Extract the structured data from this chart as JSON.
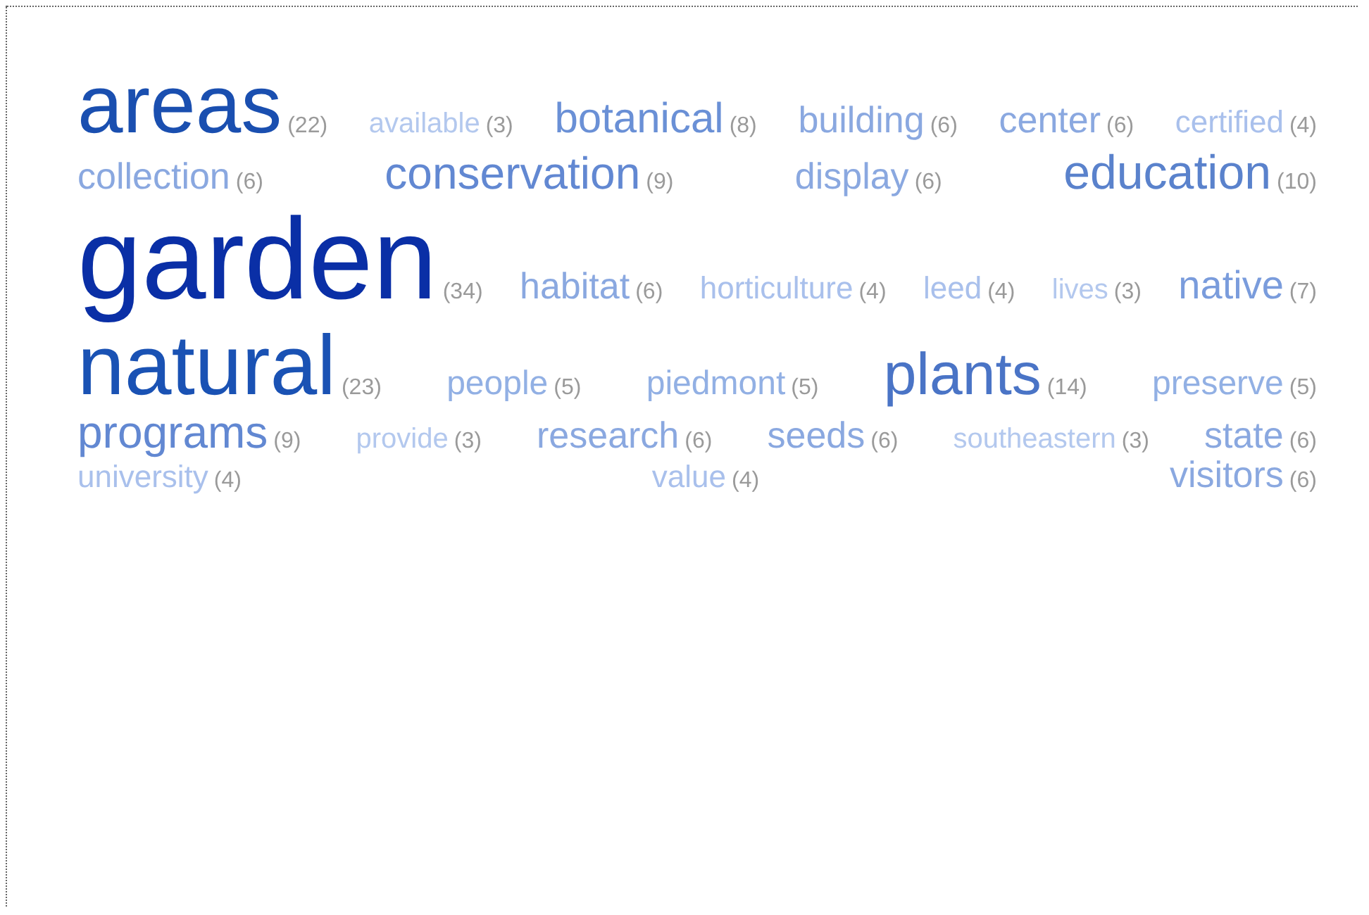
{
  "chart_data": {
    "type": "other",
    "categories": [
      "areas",
      "available",
      "botanical",
      "building",
      "center",
      "certified",
      "collection",
      "conservation",
      "display",
      "education",
      "garden",
      "habitat",
      "horticulture",
      "leed",
      "lives",
      "native",
      "natural",
      "people",
      "piedmont",
      "plants",
      "preserve",
      "programs",
      "provide",
      "research",
      "seeds",
      "southeastern",
      "state",
      "university",
      "value",
      "visitors"
    ],
    "values": [
      22,
      3,
      8,
      6,
      6,
      4,
      6,
      9,
      6,
      10,
      34,
      6,
      4,
      4,
      3,
      7,
      23,
      5,
      5,
      14,
      5,
      9,
      3,
      6,
      6,
      3,
      6,
      4,
      4,
      6
    ],
    "value_labels": [
      "(22)",
      "(3)",
      "(8)",
      "(6)",
      "(6)",
      "(4)",
      "(6)",
      "(9)",
      "(6)",
      "(10)",
      "(34)",
      "(6)",
      "(4)",
      "(4)",
      "(3)",
      "(7)",
      "(23)",
      "(5)",
      "(5)",
      "(14)",
      "(5)",
      "(9)",
      "(3)",
      "(6)",
      "(6)",
      "(3)",
      "(6)",
      "(4)",
      "(4)",
      "(6)"
    ],
    "colors": [
      "#1a4fb0",
      "#b3c8ee",
      "#6a90d6",
      "#8aa8e0",
      "#8aa8e0",
      "#a9c0ec",
      "#8aa8e0",
      "#6288d2",
      "#8aa8e0",
      "#5a82cc",
      "#0a2fa6",
      "#8aa8e0",
      "#a9c0ec",
      "#a9c0ec",
      "#b3c8ee",
      "#7a9cdc",
      "#1a52b4",
      "#92b0e4",
      "#92b0e4",
      "#4a74c6",
      "#92b0e4",
      "#6288d2",
      "#b3c8ee",
      "#8aa8e0",
      "#8aa8e0",
      "#b3c8ee",
      "#8aa8e0",
      "#a9c0ec",
      "#a9c0ec",
      "#8aa8e0"
    ]
  }
}
